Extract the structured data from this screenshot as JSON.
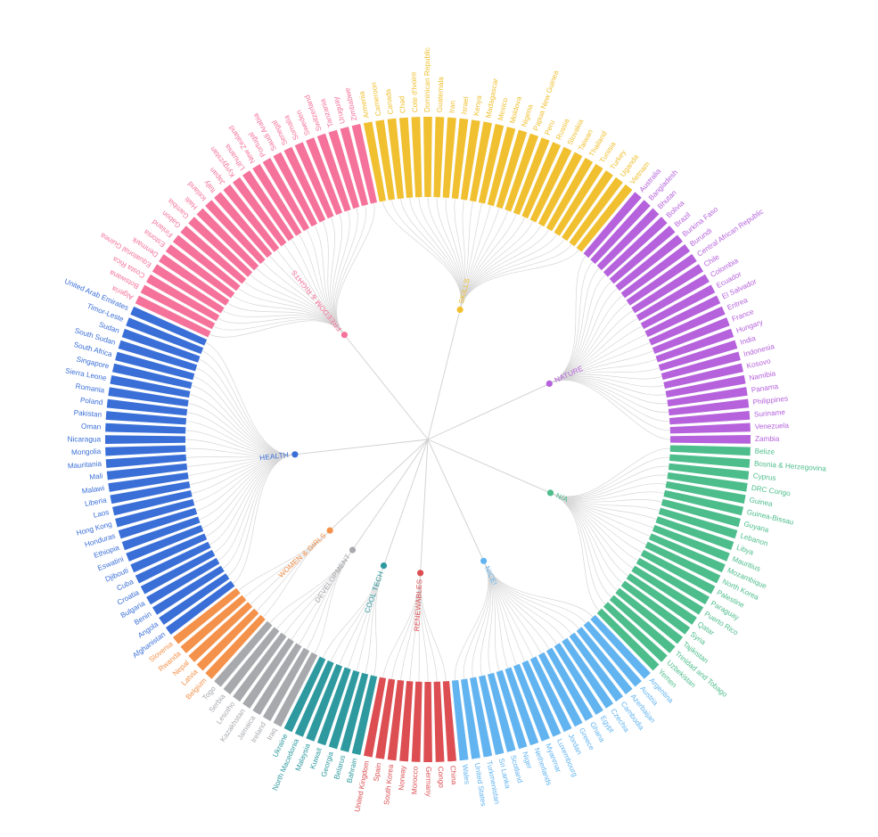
{
  "chart_data": {
    "type": "radial-dendrogram-bar",
    "root": "",
    "groups": [
      {
        "name": "FREEDOM & RIGHTS",
        "color": "#f5729a",
        "items": [
          "Algeria",
          "Botswana",
          "Costa Rica",
          "Equatorial Guinea",
          "Denmark",
          "Estonia",
          "Finland",
          "Gabon",
          "Gambia",
          "Haiti",
          "Iceland",
          "Italy",
          "Japan",
          "Kyrgyzstan",
          "Lithuania",
          "New Zealand",
          "Portugal",
          "Saudi Arabia",
          "Senegal",
          "Somalia",
          "Sweden",
          "Switzerland",
          "Tanzania",
          "Uruguay",
          "Zimbabwe"
        ]
      },
      {
        "name": "SKILLS",
        "color": "#f0c030",
        "items": [
          "Armenia",
          "Cameroon",
          "Canada",
          "Chad",
          "Cote d'Ivoire",
          "Dominican Republic",
          "Guatemala",
          "Iran",
          "Israel",
          "Kenya",
          "Madagascar",
          "Mexico",
          "Moldova",
          "Nigeria",
          "Papua New Guinea",
          "Peru",
          "Russia",
          "Slovakia",
          "Taiwan",
          "Thailand",
          "Tunisia",
          "Turkey",
          "Uganda",
          "Vietnam"
        ]
      },
      {
        "name": "NATURE",
        "color": "#b562dc",
        "items": [
          "Australia",
          "Bangladesh",
          "Bhutan",
          "Bolivia",
          "Brazil",
          "Burkina Faso",
          "Burundi",
          "Central African Republic",
          "Chile",
          "Colombia",
          "Ecuador",
          "El Salvador",
          "Eritrea",
          "France",
          "Hungary",
          "India",
          "Indonesia",
          "Kosovo",
          "Namibia",
          "Panama",
          "Philippines",
          "Suriname",
          "Venezuela",
          "Zambia"
        ]
      },
      {
        "name": "N/A",
        "color": "#4dbd8c",
        "items": [
          "Belize",
          "Bosnia & Herzegovina",
          "Cyprus",
          "DRC Congo",
          "Guinea",
          "Guinea-Bissau",
          "Guyana",
          "Lebanon",
          "Libya",
          "Mauritius",
          "Mozambique",
          "North Korea",
          "Palestine",
          "Paraguay",
          "Puerto Rico",
          "Qatar",
          "Syria",
          "Tajikistan",
          "Trinidad and Tobago",
          "Uzbekistan",
          "Yemen"
        ]
      },
      {
        "name": "NICE!",
        "color": "#62b4f0",
        "items": [
          "Argentina",
          "Austria",
          "Azerbaijan",
          "Cambodia",
          "Czechia",
          "Egypt",
          "Ghana",
          "Greece",
          "Jordan",
          "Luxembourg",
          "Myanmar",
          "Netherlands",
          "Niger",
          "Scotland",
          "Sri Lanka",
          "Turkmenistan",
          "United States",
          "Wales"
        ]
      },
      {
        "name": "RENEWABLES",
        "color": "#dc4e52",
        "items": [
          "China",
          "Congo",
          "Germany",
          "Morocco",
          "Norway",
          "South Korea",
          "Spain",
          "United Kingdom"
        ]
      },
      {
        "name": "COOL TECH",
        "color": "#2e9aa0",
        "items": [
          "Bahrain",
          "Belarus",
          "Georgia",
          "Kuwait",
          "Malaysia",
          "North Macedonia",
          "Ukraine"
        ]
      },
      {
        "name": "DEVELOPMENT",
        "color": "#a7a9ad",
        "items": [
          "Iraq",
          "Ireland",
          "Jamaica",
          "Kazakhstan",
          "Lesotho",
          "Serbia",
          "Togo"
        ]
      },
      {
        "name": "WOMEN & GIRLS",
        "color": "#f4914a",
        "items": [
          "Belgium",
          "Latvia",
          "Nepal",
          "Rwanda",
          "Slovenia"
        ]
      },
      {
        "name": "HEALTH",
        "color": "#3a6fd8",
        "items": [
          "Afghanistan",
          "Angola",
          "Benin",
          "Bulgaria",
          "Croatia",
          "Cuba",
          "Djibouti",
          "Eswatini",
          "Ethiopia",
          "Honduras",
          "Hong Kong",
          "Laos",
          "Liberia",
          "Malawi",
          "Mali",
          "Mauritania",
          "Mongolia",
          "Nicaragua",
          "Oman",
          "Pakistan",
          "Poland",
          "Romania",
          "Sierra Leone",
          "Singapore",
          "South Africa",
          "South Sudan",
          "Sudan",
          "Timor-Leste",
          "United Arab Emirates"
        ]
      }
    ]
  }
}
